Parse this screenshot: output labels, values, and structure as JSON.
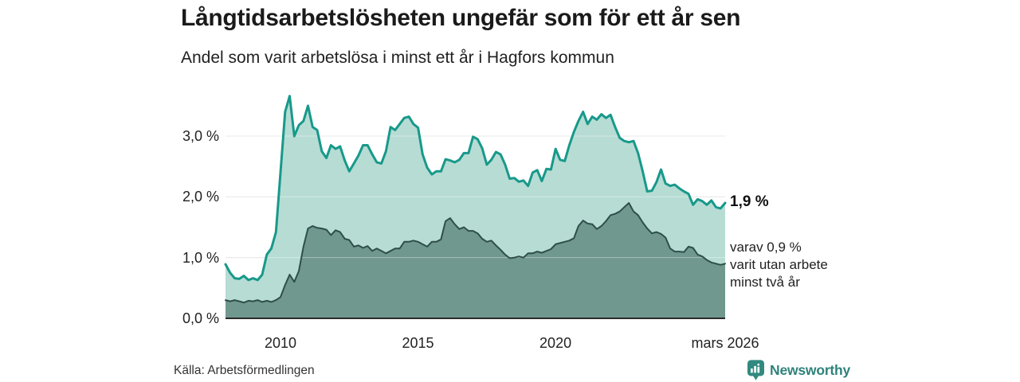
{
  "header": {
    "title": "Långtidsarbetslösheten ungefär som för ett år sen",
    "subtitle": "Andel som varit arbetslösa i minst ett år i Hagfors kommun"
  },
  "chart_data": {
    "type": "area",
    "title": "Långtidsarbetslösheten ungefär som för ett år sen",
    "subtitle": "Andel som varit arbetslösa i minst ett år i Hagfors kommun",
    "xlabel": "",
    "ylabel": "",
    "xlim": [
      2008.0,
      2026.17
    ],
    "ylim": [
      0,
      3.8
    ],
    "grid": "horizontal",
    "legend": "none",
    "x_interval_years": 0.1667,
    "x_ticks": [
      {
        "value": 2010,
        "label": "2010"
      },
      {
        "value": 2015,
        "label": "2015"
      },
      {
        "value": 2020,
        "label": "2020"
      },
      {
        "value": 2026.17,
        "label": "mars 2026"
      }
    ],
    "y_ticks": [
      {
        "value": 0,
        "label": "0,0 %"
      },
      {
        "value": 1,
        "label": "1,0 %"
      },
      {
        "value": 2,
        "label": "2,0 %"
      },
      {
        "value": 3,
        "label": "3,0 %"
      }
    ],
    "series": [
      {
        "name": "minst ett år",
        "line_color": "#17998a",
        "fill_color": "#b7dcd4",
        "line_width": 3,
        "latest_value": 1.9,
        "values": [
          0.89,
          0.75,
          0.66,
          0.65,
          0.7,
          0.63,
          0.66,
          0.63,
          0.72,
          1.05,
          1.15,
          1.42,
          2.4,
          3.4,
          3.66,
          3.0,
          3.18,
          3.25,
          3.5,
          3.15,
          3.1,
          2.75,
          2.64,
          2.85,
          2.79,
          2.83,
          2.6,
          2.42,
          2.55,
          2.68,
          2.85,
          2.85,
          2.7,
          2.57,
          2.55,
          2.75,
          3.15,
          3.1,
          3.2,
          3.3,
          3.32,
          3.2,
          3.14,
          2.7,
          2.48,
          2.37,
          2.42,
          2.42,
          2.62,
          2.6,
          2.57,
          2.61,
          2.72,
          2.72,
          2.99,
          2.95,
          2.8,
          2.53,
          2.61,
          2.74,
          2.7,
          2.53,
          2.3,
          2.31,
          2.25,
          2.27,
          2.18,
          2.4,
          2.44,
          2.26,
          2.46,
          2.45,
          2.79,
          2.61,
          2.59,
          2.85,
          3.07,
          3.25,
          3.4,
          3.2,
          3.32,
          3.27,
          3.36,
          3.3,
          3.35,
          3.15,
          2.97,
          2.92,
          2.9,
          2.92,
          2.72,
          2.42,
          2.09,
          2.1,
          2.24,
          2.45,
          2.22,
          2.18,
          2.2,
          2.14,
          2.09,
          2.05,
          1.87,
          1.96,
          1.93,
          1.87,
          1.94,
          1.83,
          1.81,
          1.9
        ]
      },
      {
        "name": "minst två år",
        "line_color": "#2e4f49",
        "fill_color": "#70988f",
        "line_width": 2,
        "latest_value": 0.9,
        "values": [
          0.3,
          0.28,
          0.3,
          0.28,
          0.26,
          0.29,
          0.28,
          0.3,
          0.27,
          0.29,
          0.27,
          0.3,
          0.35,
          0.55,
          0.72,
          0.6,
          0.78,
          1.18,
          1.48,
          1.52,
          1.49,
          1.48,
          1.46,
          1.37,
          1.45,
          1.42,
          1.31,
          1.29,
          1.18,
          1.2,
          1.16,
          1.19,
          1.11,
          1.15,
          1.11,
          1.07,
          1.11,
          1.15,
          1.15,
          1.26,
          1.26,
          1.28,
          1.26,
          1.22,
          1.18,
          1.26,
          1.26,
          1.3,
          1.6,
          1.65,
          1.55,
          1.47,
          1.5,
          1.44,
          1.44,
          1.4,
          1.31,
          1.26,
          1.28,
          1.2,
          1.13,
          1.05,
          0.99,
          1.0,
          1.02,
          1.0,
          1.07,
          1.07,
          1.1,
          1.08,
          1.11,
          1.14,
          1.22,
          1.24,
          1.26,
          1.28,
          1.32,
          1.52,
          1.61,
          1.56,
          1.55,
          1.47,
          1.52,
          1.6,
          1.7,
          1.72,
          1.76,
          1.83,
          1.9,
          1.76,
          1.7,
          1.58,
          1.48,
          1.4,
          1.42,
          1.39,
          1.33,
          1.15,
          1.1,
          1.1,
          1.09,
          1.18,
          1.16,
          1.05,
          1.02,
          0.96,
          0.92,
          0.9,
          0.88,
          0.9
        ]
      }
    ],
    "colors": {
      "grid": "#dcdcdc",
      "grid_overlay": "rgba(255,255,255,0.38)",
      "axis": "#2b2b2b"
    }
  },
  "annotations": {
    "latest_total_label": "1,9 %",
    "latest_two_year_lines": [
      "varav 0,9 %",
      "varit utan arbete",
      "minst två år"
    ]
  },
  "footer": {
    "source": "Källa: Arbetsförmedlingen",
    "brand": "Newsworthy",
    "brand_color": "#2f827b"
  }
}
